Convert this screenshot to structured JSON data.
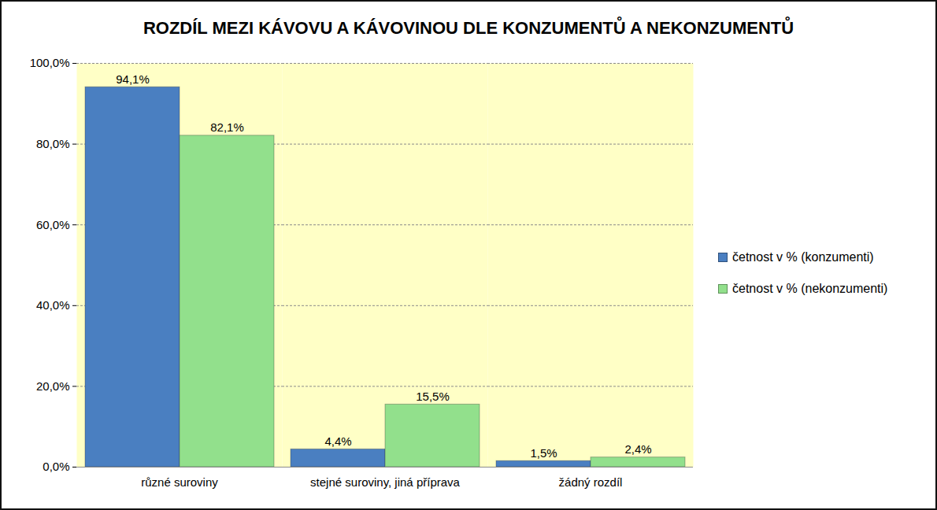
{
  "chart_data": {
    "type": "bar",
    "title": "ROZDÍL MEZI KÁVOVU A KÁVOVINOU DLE KONZUMENTŮ A NEKONZUMENTŮ",
    "categories": [
      "různé suroviny",
      "stejné suroviny, jiná příprava",
      "žádný rozdíl"
    ],
    "series": [
      {
        "name": "četnost v % (konzumenti)",
        "color": "#4a7fc1",
        "values": [
          94.1,
          4.4,
          1.5
        ],
        "value_labels": [
          "94,1%",
          "4,4%",
          "1,5%"
        ]
      },
      {
        "name": "četnost v % (nekonzumenti)",
        "color": "#92e08c",
        "values": [
          82.1,
          15.5,
          2.4
        ],
        "value_labels": [
          "82,1%",
          "15,5%",
          "2,4%"
        ]
      }
    ],
    "ylim": [
      0,
      100
    ],
    "yticks": [
      {
        "value": 0,
        "label": "0,0%"
      },
      {
        "value": 20,
        "label": "20,0%"
      },
      {
        "value": 40,
        "label": "40,0%"
      },
      {
        "value": 60,
        "label": "60,0%"
      },
      {
        "value": 80,
        "label": "80,0%"
      },
      {
        "value": 100,
        "label": "100,0%"
      }
    ],
    "grid": true,
    "legend": "right",
    "data_labels": true
  }
}
